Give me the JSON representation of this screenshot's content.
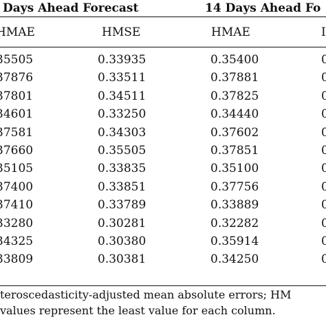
{
  "groups": [
    {
      "label": "Days Ahead Forecast"
    },
    {
      "label": "14 Days Ahead Fo"
    }
  ],
  "columns": [
    "HMAE",
    "HMSE",
    "HMAE",
    "I"
  ],
  "rows": [
    [
      "35505",
      "0.33935",
      "0.35400",
      "0"
    ],
    [
      "37876",
      "0.33511",
      "0.37881",
      "0"
    ],
    [
      "37801",
      "0.34511",
      "0.37825",
      "0"
    ],
    [
      "34601",
      "0.33250",
      "0.34440",
      "0"
    ],
    [
      "37581",
      "0.34303",
      "0.37602",
      "0"
    ],
    [
      "37660",
      "0.35505",
      "0.37851",
      "0"
    ],
    [
      "35105",
      "0.33835",
      "0.35100",
      "0"
    ],
    [
      "37400",
      "0.33851",
      "0.37756",
      "0"
    ],
    [
      "37410",
      "0.33789",
      "0.33889",
      "0"
    ],
    [
      "33280",
      "0.30281",
      "0.32282",
      "0"
    ],
    [
      "34325",
      "0.30380",
      "0.35914",
      "0"
    ],
    [
      "33809",
      "0.30381",
      "0.34250",
      "0"
    ]
  ],
  "notes": [
    "teroscedasticity-adjusted mean absolute errors; HM",
    "values represent the least value for each column."
  ]
}
